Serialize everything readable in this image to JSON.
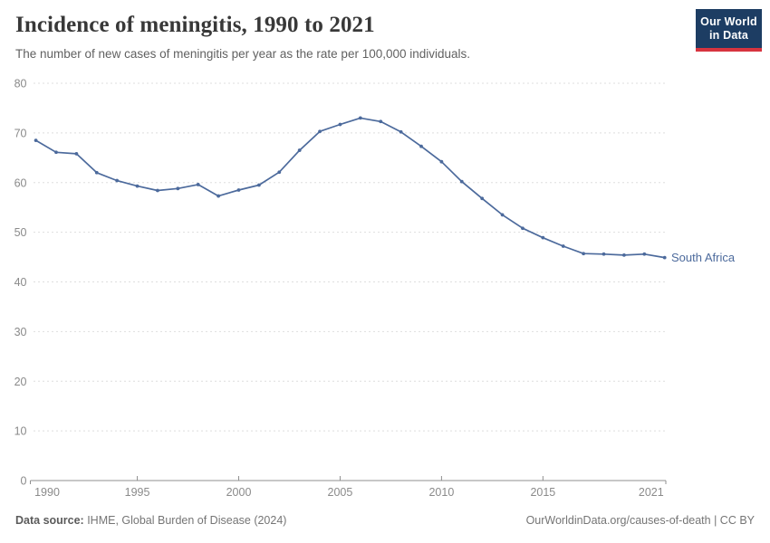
{
  "header": {
    "title": "Incidence of meningitis, 1990 to 2021",
    "subtitle": "The number of new cases of meningitis per year as the rate per 100,000 individuals.",
    "logo": {
      "line1": "Our World",
      "line2": "in Data",
      "bg_color": "#1d3d63",
      "bar_color": "#d7343f"
    }
  },
  "footer": {
    "source_label": "Data source:",
    "source_text": " IHME, Global Burden of Disease (2024)",
    "right_text": "OurWorldinData.org/causes-of-death | CC BY"
  },
  "chart_data": {
    "type": "line",
    "title": "Incidence of meningitis, 1990 to 2021",
    "xlabel": "",
    "ylabel": "",
    "xlim": [
      1990,
      2021
    ],
    "ylim": [
      0,
      80
    ],
    "grid": "horizontal-dashed",
    "legend_position": "end-of-line-label",
    "xticks": [
      1990,
      1995,
      2000,
      2005,
      2010,
      2015,
      2021
    ],
    "yticks": [
      0,
      10,
      20,
      30,
      40,
      50,
      60,
      70,
      80
    ],
    "x": [
      1990,
      1991,
      1992,
      1993,
      1994,
      1995,
      1996,
      1997,
      1998,
      1999,
      2000,
      2001,
      2002,
      2003,
      2004,
      2005,
      2006,
      2007,
      2008,
      2009,
      2010,
      2011,
      2012,
      2013,
      2014,
      2015,
      2016,
      2017,
      2018,
      2019,
      2020,
      2021
    ],
    "series": [
      {
        "name": "South Africa",
        "color": "#4c6a9c",
        "values": [
          68.5,
          66.1,
          65.8,
          62.0,
          60.4,
          59.3,
          58.4,
          58.8,
          59.6,
          57.3,
          58.5,
          59.5,
          62.1,
          66.5,
          70.3,
          71.7,
          73.0,
          72.3,
          70.2,
          67.3,
          64.2,
          60.2,
          56.8,
          53.5,
          50.8,
          48.9,
          47.2,
          45.7,
          45.6,
          45.4,
          45.6,
          44.9
        ]
      }
    ],
    "style": {
      "gridline_color": "#dedede",
      "axis_color": "#8f8f8f",
      "tick_label_color": "#8a8a8a"
    }
  }
}
